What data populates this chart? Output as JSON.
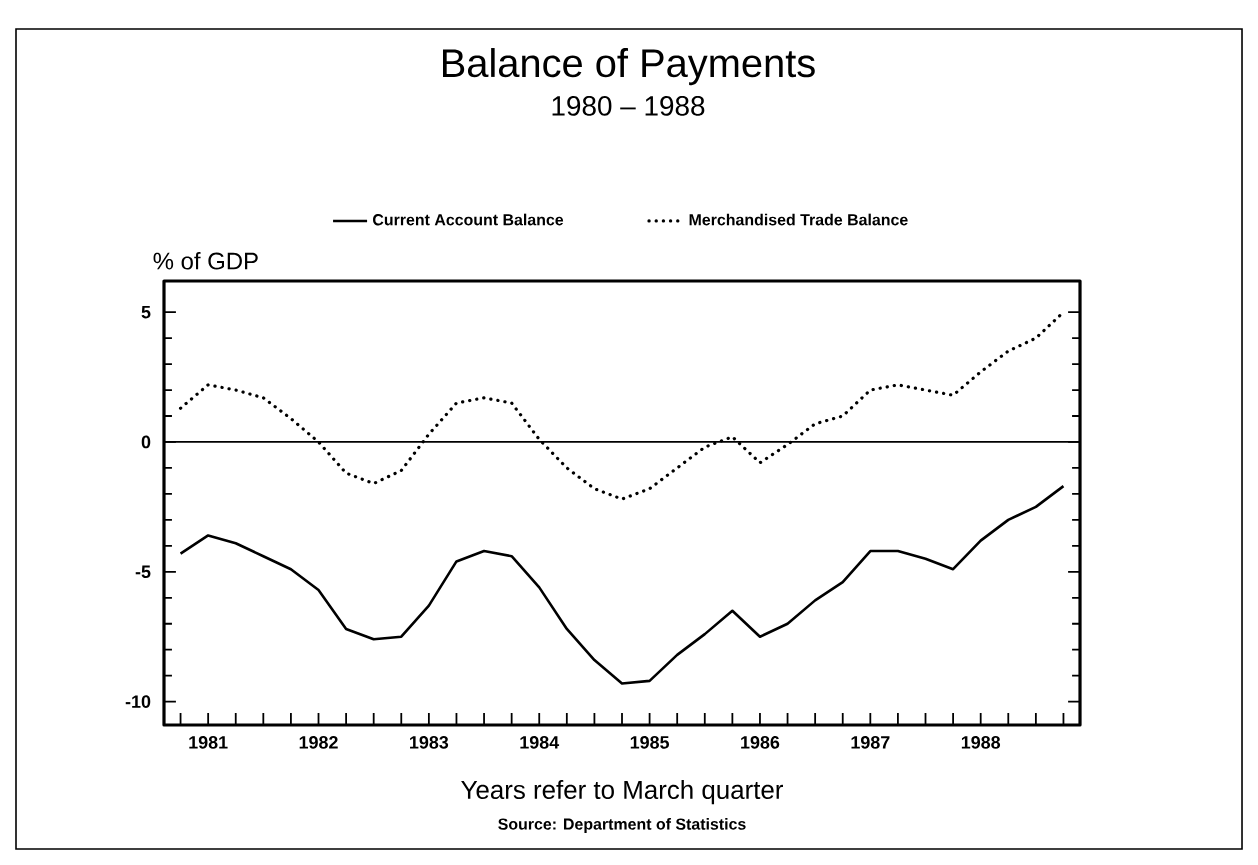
{
  "chart_data": {
    "type": "line",
    "title": "Balance of Payments",
    "subtitle": "1980 – 1988",
    "xlabel": "Years refer to March quarter",
    "ylabel": "% of GDP",
    "annotations": [
      "Source: Department of Statistics"
    ],
    "x": [
      1980.75,
      1981,
      1981.25,
      1981.5,
      1981.75,
      1982,
      1982.25,
      1982.5,
      1982.75,
      1983,
      1983.25,
      1983.5,
      1983.75,
      1984,
      1984.25,
      1984.5,
      1984.75,
      1985,
      1985.25,
      1985.5,
      1985.75,
      1986,
      1986.25,
      1986.5,
      1986.75,
      1987,
      1987.25,
      1987.5,
      1987.75,
      1988,
      1988.25,
      1988.5,
      1988.75
    ],
    "series": [
      {
        "name": "Current Account Balance",
        "color": "#000000",
        "line_style": "solid",
        "values": [
          -4.3,
          -3.6,
          -3.9,
          -4.4,
          -4.9,
          -5.7,
          -7.2,
          -7.6,
          -7.5,
          -6.3,
          -4.6,
          -4.2,
          -4.4,
          -5.6,
          -7.2,
          -8.4,
          -9.3,
          -9.2,
          -8.2,
          -7.4,
          -6.5,
          -7.5,
          -7.0,
          -6.1,
          -5.4,
          -4.2,
          -4.2,
          -4.5,
          -4.9,
          -3.8,
          -3.0,
          -2.5,
          -1.7
        ]
      },
      {
        "name": "Merchandised Trade Balance",
        "color": "#000000",
        "line_style": "dotted",
        "values": [
          1.3,
          2.2,
          2.0,
          1.7,
          0.9,
          0.0,
          -1.2,
          -1.6,
          -1.1,
          0.3,
          1.5,
          1.7,
          1.5,
          0.1,
          -1.0,
          -1.8,
          -2.2,
          -1.8,
          -1.0,
          -0.2,
          0.2,
          -0.8,
          -0.1,
          0.7,
          1.0,
          2.0,
          2.2,
          2.0,
          1.8,
          2.7,
          3.5,
          4.0,
          5.0
        ]
      }
    ],
    "xlim": [
      1980.6,
      1988.9
    ],
    "ylim": [
      -10.9,
      6.2
    ],
    "xticks": [
      {
        "value": 1980.75,
        "label": null
      },
      1981,
      {
        "value": 1981.25,
        "label": null
      },
      {
        "value": 1981.5,
        "label": null
      },
      {
        "value": 1981.75,
        "label": null
      },
      1982,
      {
        "value": 1982.25,
        "label": null
      },
      {
        "value": 1982.5,
        "label": null
      },
      {
        "value": 1982.75,
        "label": null
      },
      1983,
      {
        "value": 1983.25,
        "label": null
      },
      {
        "value": 1983.5,
        "label": null
      },
      {
        "value": 1983.75,
        "label": null
      },
      1984,
      {
        "value": 1984.25,
        "label": null
      },
      {
        "value": 1984.5,
        "label": null
      },
      {
        "value": 1984.75,
        "label": null
      },
      1985,
      {
        "value": 1985.25,
        "label": null
      },
      {
        "value": 1985.5,
        "label": null
      },
      {
        "value": 1985.75,
        "label": null
      },
      1986,
      {
        "value": 1986.25,
        "label": null
      },
      {
        "value": 1986.5,
        "label": null
      },
      {
        "value": 1986.75,
        "label": null
      },
      1987,
      {
        "value": 1987.25,
        "label": null
      },
      {
        "value": 1987.5,
        "label": null
      },
      {
        "value": 1987.75,
        "label": null
      },
      1988,
      {
        "value": 1988.25,
        "label": null
      },
      {
        "value": 1988.5,
        "label": null
      },
      {
        "value": 1988.75,
        "label": null
      }
    ],
    "yticks": [
      -10,
      -5,
      0,
      5
    ],
    "ref_lines": [
      {
        "axis": "y",
        "value": 0,
        "color": "#000000",
        "line_style": "solid"
      }
    ],
    "legend": "top",
    "marker": "none",
    "grid": false
  }
}
